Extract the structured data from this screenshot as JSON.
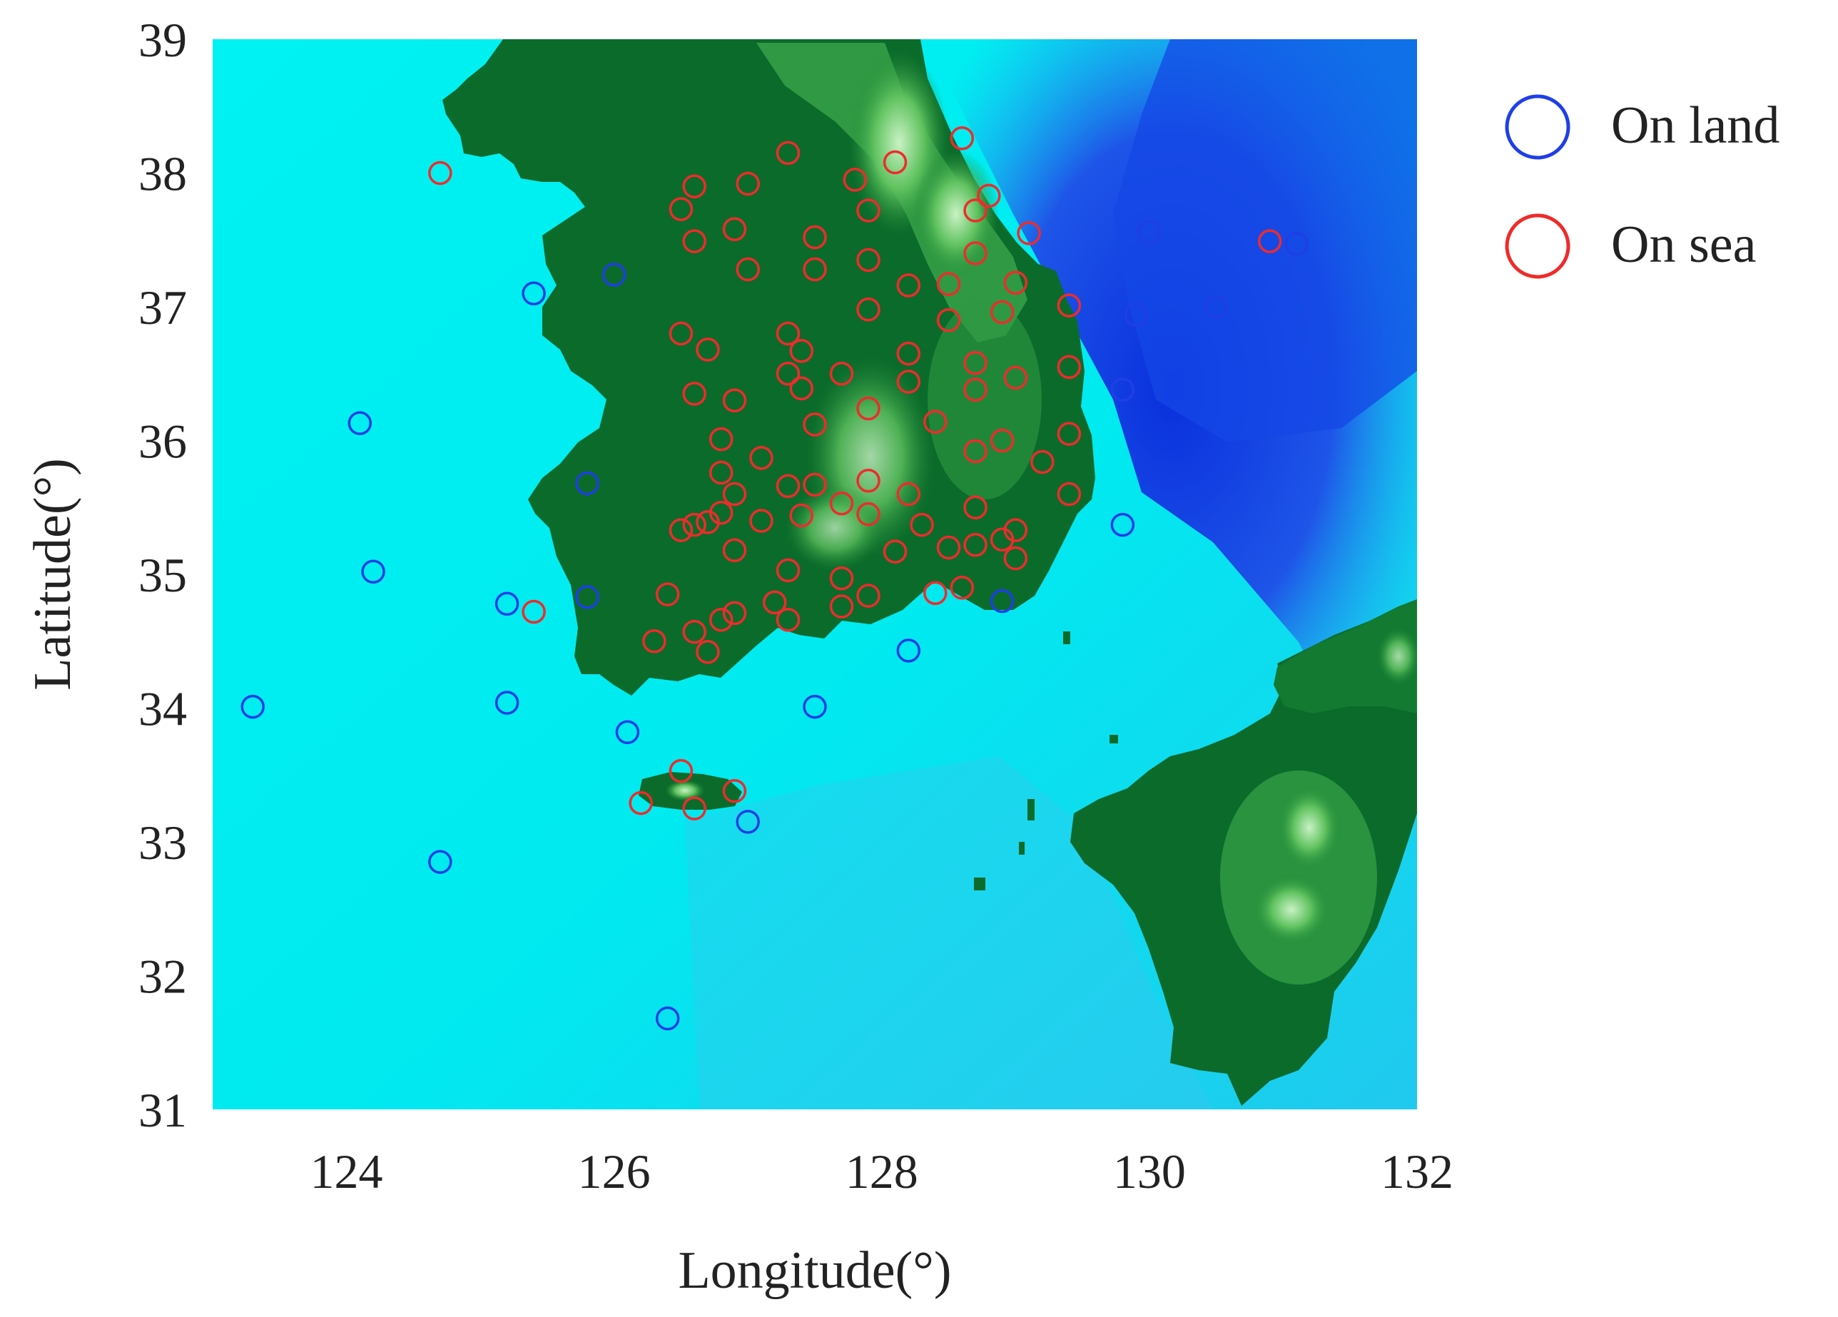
{
  "chart_data": {
    "type": "scatter",
    "title": "",
    "xlabel": "Longitude(°)",
    "ylabel": "Latitude(°)",
    "xlim": [
      123,
      132
    ],
    "ylim": [
      31,
      39
    ],
    "xticks": [
      124,
      126,
      128,
      130,
      132
    ],
    "yticks": [
      31,
      32,
      33,
      34,
      35,
      36,
      37,
      38,
      39
    ],
    "grid": false,
    "legend_position": "outside right top",
    "background": "terrain elevation map (sea in cyan/blue, land in green)",
    "colors": {
      "shallow_sea": "#00f0f0",
      "deep_sea": "#0a3fe0",
      "lowland": "#0a6b2a",
      "highland": "#9fe0a0",
      "on_land_marker": "#1f3fe6",
      "on_sea_marker": "#ef2b2b"
    },
    "series": [
      {
        "name": "On land",
        "color": "#1f3fe6",
        "marker": "open circle",
        "points": [
          [
            124.1,
            36.13
          ],
          [
            124.2,
            35.02
          ],
          [
            123.3,
            34.01
          ],
          [
            124.7,
            32.85
          ],
          [
            125.4,
            37.1
          ],
          [
            126.0,
            37.24
          ],
          [
            125.8,
            35.68
          ],
          [
            125.8,
            34.83
          ],
          [
            125.2,
            34.78
          ],
          [
            125.2,
            34.04
          ],
          [
            126.1,
            33.82
          ],
          [
            127.0,
            33.15
          ],
          [
            126.4,
            31.68
          ],
          [
            127.5,
            34.01
          ],
          [
            128.2,
            34.43
          ],
          [
            128.9,
            34.8
          ],
          [
            129.8,
            35.37
          ],
          [
            129.8,
            36.38
          ],
          [
            129.9,
            36.94
          ],
          [
            130.0,
            37.56
          ],
          [
            130.5,
            37.0
          ],
          [
            131.1,
            37.47
          ]
        ]
      },
      {
        "name": "On sea",
        "color": "#ef2b2b",
        "marker": "open circle",
        "points": [
          [
            124.7,
            38.0
          ],
          [
            125.4,
            34.72
          ],
          [
            130.9,
            37.49
          ],
          [
            126.5,
            33.53
          ],
          [
            126.2,
            33.29
          ],
          [
            126.6,
            33.25
          ],
          [
            126.9,
            33.38
          ],
          [
            128.6,
            38.26
          ],
          [
            127.3,
            38.15
          ],
          [
            128.1,
            38.08
          ],
          [
            127.8,
            37.95
          ],
          [
            126.6,
            37.9
          ],
          [
            127.0,
            37.92
          ],
          [
            128.8,
            37.83
          ],
          [
            128.7,
            37.72
          ],
          [
            127.9,
            37.72
          ],
          [
            126.5,
            37.73
          ],
          [
            126.9,
            37.58
          ],
          [
            129.1,
            37.55
          ],
          [
            127.5,
            37.52
          ],
          [
            126.6,
            37.49
          ],
          [
            128.7,
            37.4
          ],
          [
            127.9,
            37.35
          ],
          [
            127.0,
            37.28
          ],
          [
            127.5,
            37.28
          ],
          [
            128.2,
            37.16
          ],
          [
            128.5,
            37.17
          ],
          [
            129.0,
            37.18
          ],
          [
            127.9,
            36.98
          ],
          [
            128.9,
            36.96
          ],
          [
            128.5,
            36.9
          ],
          [
            129.4,
            37.01
          ],
          [
            126.5,
            36.8
          ],
          [
            127.3,
            36.8
          ],
          [
            127.4,
            36.67
          ],
          [
            126.7,
            36.68
          ],
          [
            128.2,
            36.65
          ],
          [
            128.7,
            36.58
          ],
          [
            129.4,
            36.55
          ],
          [
            127.3,
            36.5
          ],
          [
            127.7,
            36.5
          ],
          [
            129.0,
            36.47
          ],
          [
            128.2,
            36.44
          ],
          [
            127.4,
            36.39
          ],
          [
            128.7,
            36.38
          ],
          [
            126.6,
            36.35
          ],
          [
            126.9,
            36.3
          ],
          [
            127.9,
            36.24
          ],
          [
            128.4,
            36.14
          ],
          [
            127.5,
            36.12
          ],
          [
            129.4,
            36.05
          ],
          [
            126.8,
            36.01
          ],
          [
            128.9,
            36.0
          ],
          [
            128.7,
            35.92
          ],
          [
            127.1,
            35.87
          ],
          [
            129.2,
            35.84
          ],
          [
            126.8,
            35.76
          ],
          [
            127.9,
            35.7
          ],
          [
            127.5,
            35.67
          ],
          [
            127.3,
            35.66
          ],
          [
            126.9,
            35.6
          ],
          [
            128.2,
            35.6
          ],
          [
            129.4,
            35.6
          ],
          [
            127.7,
            35.53
          ],
          [
            128.7,
            35.5
          ],
          [
            126.8,
            35.46
          ],
          [
            127.9,
            35.45
          ],
          [
            127.4,
            35.44
          ],
          [
            127.1,
            35.4
          ],
          [
            126.6,
            35.37
          ],
          [
            126.7,
            35.39
          ],
          [
            126.5,
            35.33
          ],
          [
            128.3,
            35.37
          ],
          [
            129.0,
            35.33
          ],
          [
            128.9,
            35.26
          ],
          [
            128.7,
            35.22
          ],
          [
            128.5,
            35.2
          ],
          [
            126.9,
            35.18
          ],
          [
            128.1,
            35.17
          ],
          [
            129.0,
            35.12
          ],
          [
            127.3,
            35.03
          ],
          [
            127.7,
            34.97
          ],
          [
            128.6,
            34.9
          ],
          [
            128.4,
            34.86
          ],
          [
            126.4,
            34.85
          ],
          [
            127.2,
            34.79
          ],
          [
            127.9,
            34.84
          ],
          [
            127.7,
            34.76
          ],
          [
            126.9,
            34.71
          ],
          [
            126.8,
            34.66
          ],
          [
            127.3,
            34.66
          ],
          [
            126.6,
            34.57
          ],
          [
            126.3,
            34.5
          ],
          [
            126.7,
            34.42
          ]
        ]
      }
    ]
  },
  "legend": {
    "items": [
      {
        "label": "On land",
        "color": "#1f3fe6"
      },
      {
        "label": "On sea",
        "color": "#ef2b2b"
      }
    ]
  }
}
